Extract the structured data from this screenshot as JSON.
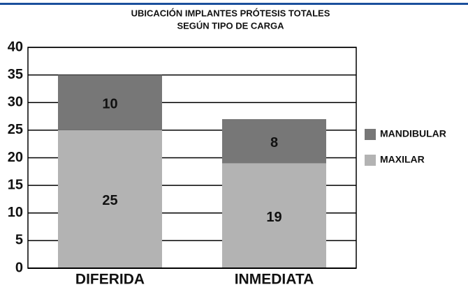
{
  "chart_data": {
    "type": "stacked_bar",
    "title": "UBICACIÓN IMPLANTES PRÓTESIS TOTALES",
    "subtitle": "SEGÚN TIPO DE CARGA",
    "categories": [
      "DIFERIDA",
      "INMEDIATA"
    ],
    "series": [
      {
        "name": "MAXILAR",
        "color": "#b3b3b3",
        "values": [
          25,
          19
        ]
      },
      {
        "name": "MANDIBULAR",
        "color": "#777777",
        "values": [
          10,
          8
        ]
      }
    ],
    "ylim": [
      0,
      40
    ],
    "yticks": [
      0,
      5,
      10,
      15,
      20,
      25,
      30,
      35,
      40
    ],
    "grid": true,
    "legend": "right"
  }
}
